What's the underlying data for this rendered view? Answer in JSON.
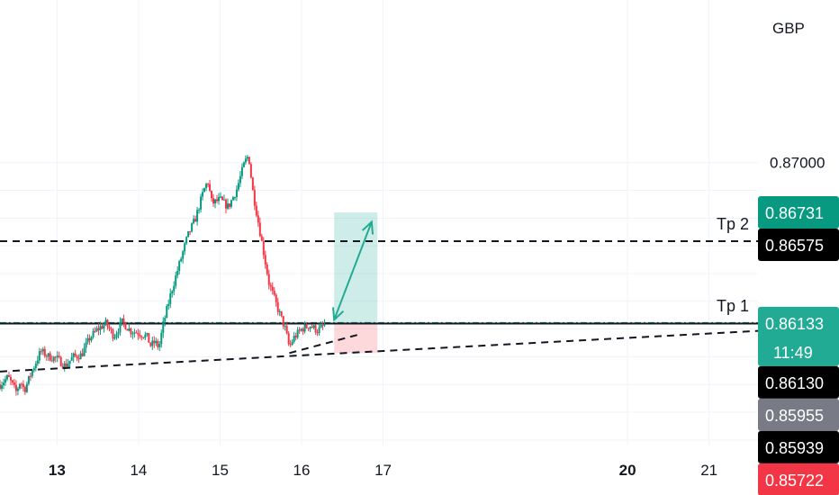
{
  "chart_data": {
    "type": "line",
    "currency": "GBP",
    "x_ticks": [
      {
        "label": "13",
        "day": 13,
        "bold": true
      },
      {
        "label": "14",
        "day": 14,
        "bold": false
      },
      {
        "label": "15",
        "day": 15,
        "bold": false
      },
      {
        "label": "16",
        "day": 16,
        "bold": false
      },
      {
        "label": "17",
        "day": 17,
        "bold": false
      },
      {
        "label": "20",
        "day": 20,
        "bold": true
      },
      {
        "label": "21",
        "day": 21,
        "bold": false
      }
    ],
    "y_ticks": [
      {
        "label": "0.87000",
        "value": 0.87
      }
    ],
    "ylim": [
      0.8547,
      0.8788
    ],
    "xlim": [
      12.3,
      21.6
    ],
    "price_path": [
      [
        12.3,
        0.858
      ],
      [
        12.4,
        0.8584
      ],
      [
        12.5,
        0.8576
      ],
      [
        12.55,
        0.8582
      ],
      [
        12.6,
        0.8577
      ],
      [
        12.7,
        0.8588
      ],
      [
        12.8,
        0.8598
      ],
      [
        12.9,
        0.8595
      ],
      [
        13.0,
        0.8594
      ],
      [
        13.1,
        0.859
      ],
      [
        13.2,
        0.8595
      ],
      [
        13.3,
        0.8596
      ],
      [
        13.4,
        0.8605
      ],
      [
        13.5,
        0.861
      ],
      [
        13.6,
        0.8613
      ],
      [
        13.7,
        0.8606
      ],
      [
        13.8,
        0.8614
      ],
      [
        13.9,
        0.8609
      ],
      [
        14.0,
        0.8608
      ],
      [
        14.1,
        0.8606
      ],
      [
        14.15,
        0.8601
      ],
      [
        14.2,
        0.8603
      ],
      [
        14.25,
        0.86
      ],
      [
        14.3,
        0.8612
      ],
      [
        14.4,
        0.863
      ],
      [
        14.5,
        0.8645
      ],
      [
        14.6,
        0.866
      ],
      [
        14.7,
        0.867
      ],
      [
        14.8,
        0.8685
      ],
      [
        14.85,
        0.869
      ],
      [
        14.9,
        0.8678
      ],
      [
        15.0,
        0.868
      ],
      [
        15.1,
        0.8676
      ],
      [
        15.2,
        0.8685
      ],
      [
        15.3,
        0.87
      ],
      [
        15.35,
        0.8704
      ],
      [
        15.4,
        0.8685
      ],
      [
        15.5,
        0.866
      ],
      [
        15.6,
        0.8635
      ],
      [
        15.7,
        0.8622
      ],
      [
        15.8,
        0.861
      ],
      [
        15.85,
        0.86
      ],
      [
        15.9,
        0.8605
      ],
      [
        16.0,
        0.861
      ],
      [
        16.1,
        0.8612
      ],
      [
        16.2,
        0.8609
      ],
      [
        16.3,
        0.8613
      ]
    ],
    "horizontal_lines": [
      {
        "name": "Tp 2",
        "value": 0.86575,
        "style": "dashed",
        "color": "#131722"
      },
      {
        "name": "Tp 1",
        "value": 0.86133,
        "style": "dash-dot",
        "color": "#0c8a82"
      },
      {
        "name": "",
        "value": 0.8613,
        "style": "solid",
        "color": "#131722"
      }
    ],
    "trend_lines": [
      {
        "from": [
          12.3,
          0.8587
        ],
        "to": [
          21.6,
          0.8609
        ],
        "style": "dashed"
      },
      {
        "from": [
          15.85,
          0.8597
        ],
        "to": [
          16.7,
          0.8607
        ],
        "style": "dashed"
      }
    ],
    "position_zone": {
      "x_start": 16.4,
      "x_end": 16.93,
      "entry": 0.86125,
      "target": 0.86731,
      "stop": 0.8597,
      "profit_color": "#22ab94",
      "loss_color": "#f7525f"
    },
    "arrow": {
      "from": [
        16.4,
        0.8615
      ],
      "to": [
        16.86,
        0.8668
      ],
      "color": "#22ab94"
    },
    "price_badges": [
      {
        "label": "0.86731",
        "value": 0.86731,
        "bg": "#089981",
        "fg": "#ffffff"
      },
      {
        "label": "0.86575",
        "value": 0.86575,
        "bg": "#000000",
        "fg": "#ffffff"
      },
      {
        "label": "0.86133",
        "value": 0.86133,
        "bg": "#22ab94",
        "fg": "#ffffff",
        "sublabel": "11:49"
      },
      {
        "label": "0.86130",
        "value": 0.8613,
        "bg": "#000000",
        "fg": "#ffffff"
      },
      {
        "label": "0.85955",
        "value": 0.85955,
        "bg": "#787b86",
        "fg": "#ffffff"
      },
      {
        "label": "0.85939",
        "value": 0.85939,
        "bg": "#000000",
        "fg": "#ffffff"
      },
      {
        "label": "0.85722",
        "value": 0.85722,
        "bg": "#f23645",
        "fg": "#ffffff"
      }
    ],
    "colors": {
      "up": "#089981",
      "down": "#f23645",
      "grid": "#f0f3fa",
      "text": "#131722"
    }
  }
}
